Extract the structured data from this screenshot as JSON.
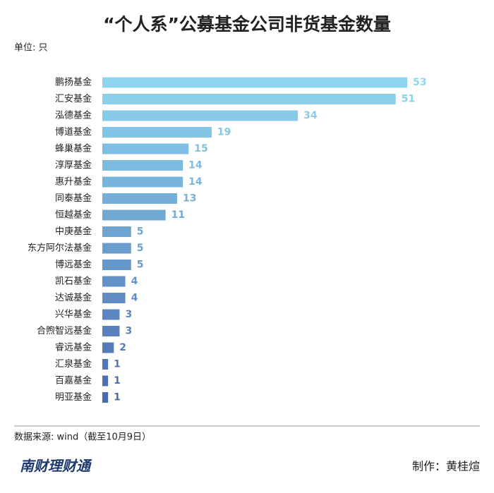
{
  "chart_data": {
    "type": "bar",
    "orientation": "horizontal",
    "title": "“个人系”公募基金公司非货基金数量",
    "unit_label": "单位: 只",
    "categories": [
      "鹏扬基金",
      "汇安基金",
      "泓德基金",
      "博道基金",
      "蜂巢基金",
      "淳厚基金",
      "惠升基金",
      "同泰基金",
      "恒越基金",
      "中庚基金",
      "东方阿尔法基金",
      "博远基金",
      "凯石基金",
      "达诚基金",
      "兴华基金",
      "合煦智远基金",
      "睿远基金",
      "汇泉基金",
      "百嘉基金",
      "明亚基金"
    ],
    "values": [
      53,
      51,
      34,
      19,
      15,
      14,
      14,
      13,
      11,
      5,
      5,
      5,
      4,
      4,
      3,
      3,
      2,
      1,
      1,
      1
    ],
    "colors": [
      "#8ed6f0",
      "#8ad0ed",
      "#87cbe9",
      "#83c5e6",
      "#80bfe3",
      "#7cbadf",
      "#79b4dc",
      "#75aed8",
      "#71a9d5",
      "#6ea3d2",
      "#6a9dce",
      "#6798cb",
      "#6392c8",
      "#608cc4",
      "#5c86c1",
      "#5881bd",
      "#557bba",
      "#5175b7",
      "#4e70b3",
      "#4a6ab0"
    ],
    "source": "数据来源: wind（截至10月9日）",
    "logo": "南财理财通",
    "credit": "制作：黄桂煊"
  }
}
